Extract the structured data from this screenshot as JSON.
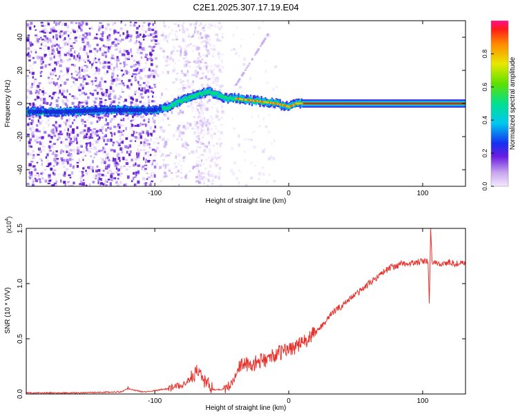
{
  "title": "C2E1.2025.307.17.19.E04",
  "chart_data": [
    {
      "type": "heatmap",
      "name": "spectrogram",
      "xlabel": "Height of straight line (km)",
      "ylabel": "Frequency (Hz)",
      "xlim": [
        -196,
        132
      ],
      "ylim": [
        -50,
        50
      ],
      "xticks": [
        -100,
        0,
        100
      ],
      "xtick_labels": [
        "-100",
        "0",
        "100"
      ],
      "yticks": [
        -40,
        -20,
        0,
        20,
        40
      ],
      "ytick_labels": [
        "-40",
        "-20",
        "0",
        "20",
        "40"
      ],
      "ridge": {
        "x": [
          -196,
          -170,
          -140,
          -120,
          -100,
          -90,
          -80,
          -70,
          -60,
          -55,
          -50,
          -45,
          -40,
          -30,
          -20,
          -10,
          0,
          5,
          10,
          50,
          100,
          132
        ],
        "y": [
          -5,
          -5,
          -4,
          -4,
          -4,
          -2,
          2,
          5,
          7,
          6,
          4,
          3,
          3,
          2,
          1,
          0,
          -2,
          0,
          0,
          0,
          0,
          0
        ]
      },
      "colorbar": {
        "label": "Normalized spectral amplitude",
        "range": [
          0.0,
          1.0
        ],
        "ticks": [
          0.0,
          0.2,
          0.4,
          0.6,
          0.8
        ],
        "tick_labels": [
          "0.0",
          "0.2",
          "0.4",
          "0.6",
          "0.8"
        ]
      }
    },
    {
      "type": "line",
      "name": "snr",
      "xlabel": "Height of straight line (km)",
      "ylabel": "SNR (10 * V/V)",
      "scale_label": "(x10",
      "scale_exp": "4",
      "scale_close": ")",
      "xlim": [
        -196,
        132
      ],
      "ylim": [
        0.0,
        1.5
      ],
      "xticks": [
        -100,
        0,
        100
      ],
      "xtick_labels": [
        "-100",
        "0",
        "100"
      ],
      "yticks": [
        0.0,
        0.5,
        1.0,
        1.5
      ],
      "ytick_labels": [
        "0.0",
        "0.5",
        "1.0",
        "1.5"
      ],
      "color": "#e8302a",
      "series": [
        {
          "name": "SNR",
          "x": [
            -196,
            -180,
            -160,
            -140,
            -125,
            -120,
            -110,
            -100,
            -90,
            -80,
            -72,
            -68,
            -62,
            -56,
            -50,
            -44,
            -40,
            -36,
            -33,
            -30,
            -25,
            -20,
            -15,
            -10,
            -5,
            0,
            5,
            10,
            15,
            20,
            25,
            30,
            35,
            40,
            45,
            50,
            55,
            60,
            65,
            70,
            75,
            80,
            85,
            90,
            95,
            100,
            104,
            105,
            106,
            107,
            110,
            115,
            120,
            125,
            132
          ],
          "y": [
            0.01,
            0.01,
            0.01,
            0.015,
            0.02,
            0.05,
            0.02,
            0.03,
            0.05,
            0.08,
            0.15,
            0.22,
            0.1,
            0.04,
            0.04,
            0.08,
            0.2,
            0.25,
            0.3,
            0.24,
            0.28,
            0.3,
            0.32,
            0.36,
            0.38,
            0.41,
            0.43,
            0.46,
            0.5,
            0.56,
            0.62,
            0.7,
            0.76,
            0.8,
            0.86,
            0.9,
            0.95,
            1.0,
            1.05,
            1.1,
            1.14,
            1.16,
            1.18,
            1.18,
            1.19,
            1.2,
            1.2,
            0.82,
            1.5,
            1.2,
            1.18,
            1.18,
            1.19,
            1.18,
            1.18
          ]
        }
      ]
    }
  ]
}
